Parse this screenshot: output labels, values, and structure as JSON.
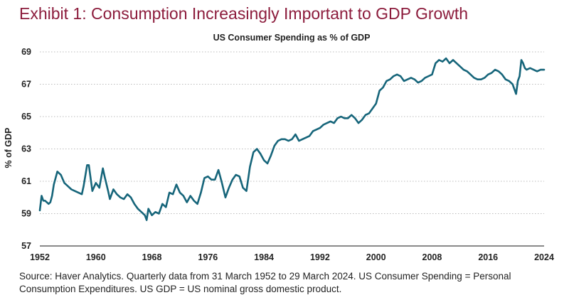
{
  "exhibit_title": "Exhibit 1: Consumption Increasingly Important to GDP Growth",
  "source_note": "Source: Haver Analytics. Quarterly data from 31 March 1952 to 29 March 2024. US Consumer Spending = Personal Consumption Expenditures. US GDP = US nominal gross domestic product.",
  "colors": {
    "title": "#8c1c3c",
    "series": "#16657a"
  },
  "chart_data": {
    "type": "line",
    "title": "US Consumer Spending as % of GDP",
    "xlabel": "",
    "ylabel": "% of GDP",
    "xlim": [
      1952,
      2024
    ],
    "ylim": [
      57,
      69
    ],
    "x_ticks": [
      1952,
      1960,
      1968,
      1976,
      1984,
      1992,
      2000,
      2008,
      2016,
      2024
    ],
    "y_ticks": [
      57,
      59,
      61,
      63,
      65,
      67,
      69
    ],
    "grid": "horizontal dotted",
    "series": [
      {
        "x": [
          1952.0,
          1952.25,
          1952.5,
          1952.75,
          1953.0,
          1953.25,
          1953.5,
          1953.75,
          1954.0,
          1954.5,
          1955.0,
          1955.5,
          1956.0,
          1956.5,
          1957.0,
          1957.5,
          1958.0,
          1958.25,
          1958.75,
          1959.0,
          1959.5,
          1960.0,
          1960.5,
          1961.0,
          1961.25,
          1961.75,
          1962.0,
          1962.5,
          1963.0,
          1963.5,
          1964.0,
          1964.5,
          1965.0,
          1965.5,
          1966.0,
          1966.5,
          1967.0,
          1967.25,
          1967.5,
          1967.75,
          1968.0,
          1968.5,
          1969.0,
          1969.5,
          1970.0,
          1970.5,
          1971.0,
          1971.5,
          1972.0,
          1972.5,
          1973.0,
          1973.5,
          1974.0,
          1974.5,
          1975.0,
          1975.5,
          1976.0,
          1976.5,
          1977.0,
          1977.5,
          1978.0,
          1978.5,
          1979.0,
          1979.5,
          1980.0,
          1980.5,
          1981.0,
          1981.5,
          1982.0,
          1982.5,
          1983.0,
          1983.5,
          1984.0,
          1984.5,
          1985.0,
          1985.5,
          1986.0,
          1986.5,
          1987.0,
          1987.5,
          1988.0,
          1988.5,
          1989.0,
          1989.5,
          1990.0,
          1990.5,
          1991.0,
          1991.5,
          1992.0,
          1992.5,
          1993.0,
          1993.5,
          1994.0,
          1994.5,
          1995.0,
          1995.5,
          1996.0,
          1996.5,
          1997.0,
          1997.5,
          1998.0,
          1998.5,
          1999.0,
          1999.5,
          2000.0,
          2000.5,
          2001.0,
          2001.5,
          2002.0,
          2002.5,
          2003.0,
          2003.5,
          2004.0,
          2004.5,
          2005.0,
          2005.5,
          2006.0,
          2006.5,
          2007.0,
          2007.5,
          2008.0,
          2008.5,
          2009.0,
          2009.5,
          2010.0,
          2010.5,
          2011.0,
          2011.5,
          2012.0,
          2012.5,
          2013.0,
          2013.5,
          2014.0,
          2014.5,
          2015.0,
          2015.5,
          2016.0,
          2016.5,
          2017.0,
          2017.5,
          2018.0,
          2018.5,
          2019.0,
          2019.5,
          2020.0,
          2020.25,
          2020.5,
          2020.75,
          2021.0,
          2021.25,
          2021.5,
          2022.0,
          2022.5,
          2023.0,
          2023.5,
          2024.0
        ],
        "values": [
          59.2,
          60.1,
          59.8,
          59.8,
          59.7,
          59.6,
          59.7,
          60.1,
          60.8,
          61.6,
          61.4,
          60.9,
          60.7,
          60.5,
          60.4,
          60.3,
          60.2,
          60.7,
          62.0,
          62.0,
          60.4,
          60.9,
          60.6,
          61.8,
          61.3,
          60.4,
          59.9,
          60.5,
          60.2,
          60.0,
          59.9,
          60.2,
          60.0,
          59.6,
          59.3,
          59.1,
          58.9,
          58.6,
          59.3,
          59.1,
          58.9,
          59.1,
          59.0,
          59.6,
          59.4,
          60.3,
          60.2,
          60.8,
          60.3,
          60.1,
          59.7,
          60.1,
          59.8,
          59.6,
          60.3,
          61.2,
          61.3,
          61.1,
          61.1,
          61.7,
          60.9,
          60.0,
          60.6,
          61.1,
          61.4,
          61.3,
          60.6,
          60.4,
          61.9,
          62.8,
          63.0,
          62.7,
          62.3,
          62.1,
          62.6,
          63.2,
          63.5,
          63.6,
          63.6,
          63.5,
          63.6,
          63.9,
          63.5,
          63.6,
          63.7,
          63.8,
          64.1,
          64.2,
          64.3,
          64.5,
          64.6,
          64.7,
          64.6,
          64.9,
          65.0,
          64.9,
          64.9,
          65.1,
          64.9,
          64.6,
          64.8,
          65.1,
          65.2,
          65.5,
          65.8,
          66.6,
          66.8,
          67.2,
          67.3,
          67.5,
          67.6,
          67.5,
          67.2,
          67.3,
          67.4,
          67.3,
          67.1,
          67.2,
          67.4,
          67.5,
          67.6,
          68.3,
          68.5,
          68.4,
          68.6,
          68.3,
          68.5,
          68.3,
          68.1,
          67.9,
          67.8,
          67.6,
          67.4,
          67.3,
          67.3,
          67.4,
          67.6,
          67.7,
          67.9,
          67.8,
          67.6,
          67.3,
          67.2,
          67.0,
          66.4,
          67.2,
          67.5,
          68.5,
          68.3,
          68.0,
          67.9,
          68.0,
          67.9,
          67.8,
          67.9,
          67.9
        ]
      }
    ]
  }
}
